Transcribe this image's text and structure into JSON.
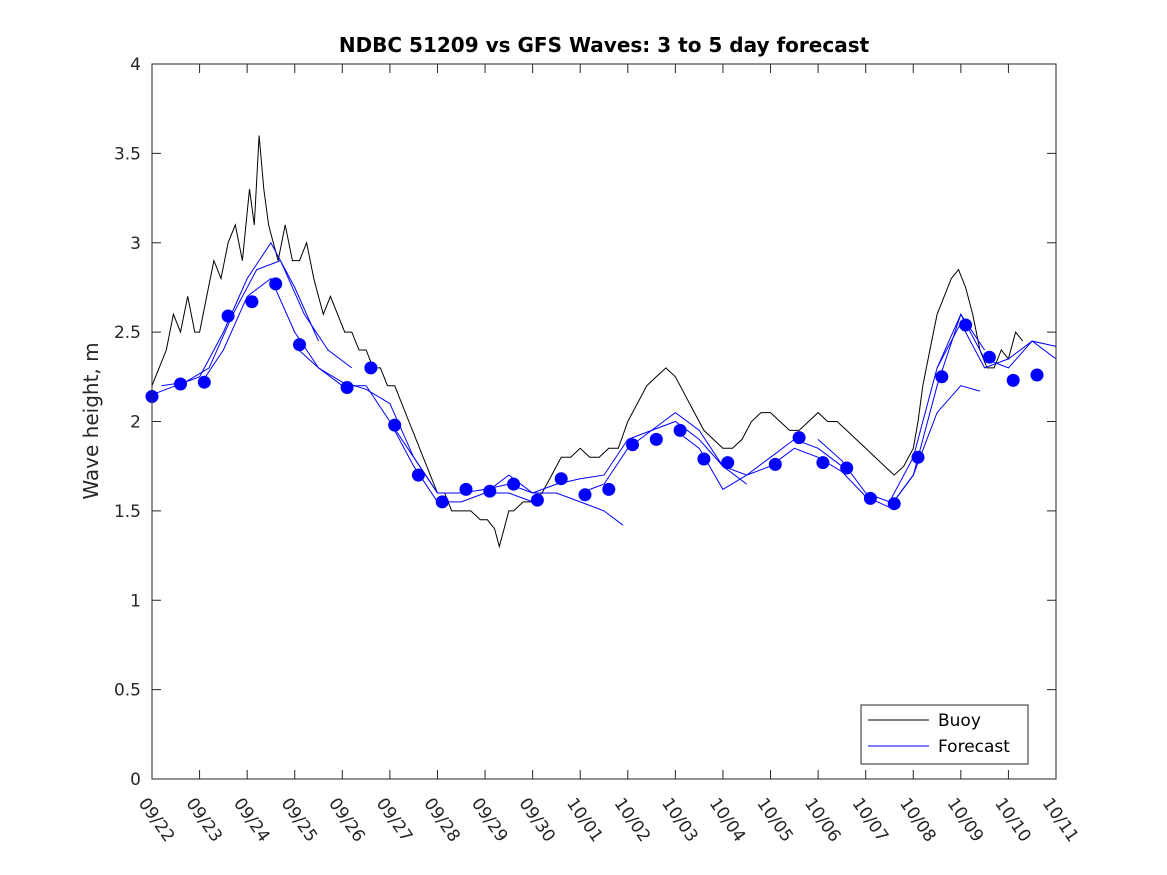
{
  "chart_data": {
    "type": "line",
    "title": "NDBC 51209 vs GFS Waves: 3 to 5 day forecast",
    "xlabel": "",
    "ylabel": "Wave height, m",
    "x_tick_labels": [
      "09/22",
      "09/23",
      "09/24",
      "09/25",
      "09/26",
      "09/27",
      "09/28",
      "09/29",
      "09/30",
      "10/01",
      "10/02",
      "10/03",
      "10/04",
      "10/05",
      "10/06",
      "10/07",
      "10/08",
      "10/09",
      "10/10",
      "10/11"
    ],
    "xlim": [
      0,
      19
    ],
    "ylim": [
      0,
      4
    ],
    "y_ticks": [
      0,
      0.5,
      1,
      1.5,
      2,
      2.5,
      3,
      3.5,
      4
    ],
    "y_tick_labels": [
      "0",
      "0.5",
      "1",
      "1.5",
      "2",
      "2.5",
      "3",
      "3.5",
      "4"
    ],
    "grid": false,
    "legend": {
      "position": "bottom-right",
      "entries": [
        "Buoy",
        "Forecast"
      ]
    },
    "colors": {
      "buoy": "#000000",
      "forecast": "#0000ff",
      "axes": "#262626"
    },
    "series": [
      {
        "name": "Buoy",
        "kind": "line",
        "note": "hourly observations; key points shown (day index, m)",
        "points": [
          [
            0.0,
            2.2
          ],
          [
            0.15,
            2.3
          ],
          [
            0.3,
            2.4
          ],
          [
            0.45,
            2.6
          ],
          [
            0.6,
            2.5
          ],
          [
            0.75,
            2.7
          ],
          [
            0.9,
            2.5
          ],
          [
            1.0,
            2.5
          ],
          [
            1.15,
            2.7
          ],
          [
            1.3,
            2.9
          ],
          [
            1.45,
            2.8
          ],
          [
            1.6,
            3.0
          ],
          [
            1.75,
            3.1
          ],
          [
            1.9,
            2.9
          ],
          [
            2.05,
            3.3
          ],
          [
            2.15,
            3.1
          ],
          [
            2.25,
            3.6
          ],
          [
            2.35,
            3.3
          ],
          [
            2.45,
            3.1
          ],
          [
            2.55,
            3.0
          ],
          [
            2.65,
            2.9
          ],
          [
            2.8,
            3.1
          ],
          [
            2.95,
            2.9
          ],
          [
            3.1,
            2.9
          ],
          [
            3.25,
            3.0
          ],
          [
            3.4,
            2.8
          ],
          [
            3.5,
            2.7
          ],
          [
            3.6,
            2.6
          ],
          [
            3.75,
            2.7
          ],
          [
            3.9,
            2.6
          ],
          [
            4.05,
            2.5
          ],
          [
            4.2,
            2.5
          ],
          [
            4.35,
            2.4
          ],
          [
            4.5,
            2.4
          ],
          [
            4.65,
            2.3
          ],
          [
            4.8,
            2.3
          ],
          [
            4.95,
            2.2
          ],
          [
            5.1,
            2.2
          ],
          [
            5.25,
            2.1
          ],
          [
            5.4,
            2.0
          ],
          [
            5.55,
            1.9
          ],
          [
            5.7,
            1.8
          ],
          [
            5.85,
            1.7
          ],
          [
            6.0,
            1.6
          ],
          [
            6.15,
            1.6
          ],
          [
            6.3,
            1.5
          ],
          [
            6.5,
            1.5
          ],
          [
            6.7,
            1.5
          ],
          [
            6.9,
            1.45
          ],
          [
            7.05,
            1.45
          ],
          [
            7.2,
            1.4
          ],
          [
            7.3,
            1.3
          ],
          [
            7.4,
            1.4
          ],
          [
            7.5,
            1.5
          ],
          [
            7.6,
            1.5
          ],
          [
            7.8,
            1.55
          ],
          [
            8.0,
            1.55
          ],
          [
            8.2,
            1.6
          ],
          [
            8.4,
            1.7
          ],
          [
            8.6,
            1.8
          ],
          [
            8.8,
            1.8
          ],
          [
            9.0,
            1.85
          ],
          [
            9.2,
            1.8
          ],
          [
            9.4,
            1.8
          ],
          [
            9.6,
            1.85
          ],
          [
            9.8,
            1.85
          ],
          [
            10.0,
            2.0
          ],
          [
            10.2,
            2.1
          ],
          [
            10.4,
            2.2
          ],
          [
            10.6,
            2.25
          ],
          [
            10.8,
            2.3
          ],
          [
            11.0,
            2.25
          ],
          [
            11.2,
            2.15
          ],
          [
            11.4,
            2.05
          ],
          [
            11.6,
            1.95
          ],
          [
            11.8,
            1.9
          ],
          [
            12.0,
            1.85
          ],
          [
            12.2,
            1.85
          ],
          [
            12.4,
            1.9
          ],
          [
            12.6,
            2.0
          ],
          [
            12.8,
            2.05
          ],
          [
            13.0,
            2.05
          ],
          [
            13.2,
            2.0
          ],
          [
            13.4,
            1.95
          ],
          [
            13.6,
            1.95
          ],
          [
            13.8,
            2.0
          ],
          [
            14.0,
            2.05
          ],
          [
            14.2,
            2.0
          ],
          [
            14.4,
            2.0
          ],
          [
            14.6,
            1.95
          ],
          [
            14.8,
            1.9
          ],
          [
            15.0,
            1.85
          ],
          [
            15.2,
            1.8
          ],
          [
            15.4,
            1.75
          ],
          [
            15.6,
            1.7
          ],
          [
            15.8,
            1.75
          ],
          [
            16.0,
            1.85
          ],
          [
            16.1,
            2.0
          ],
          [
            16.2,
            2.2
          ],
          [
            16.35,
            2.4
          ],
          [
            16.5,
            2.6
          ],
          [
            16.65,
            2.7
          ],
          [
            16.8,
            2.8
          ],
          [
            16.95,
            2.85
          ],
          [
            17.1,
            2.75
          ],
          [
            17.25,
            2.6
          ],
          [
            17.4,
            2.4
          ],
          [
            17.55,
            2.3
          ],
          [
            17.7,
            2.3
          ],
          [
            17.85,
            2.4
          ],
          [
            18.0,
            2.35
          ],
          [
            18.15,
            2.5
          ],
          [
            18.3,
            2.45
          ]
        ]
      },
      {
        "name": "Forecast",
        "kind": "line",
        "runs": [
          [
            [
              0,
              2.15
            ],
            [
              0.5,
              2.2
            ],
            [
              1,
              2.25
            ],
            [
              1.5,
              2.5
            ],
            [
              2,
              2.8
            ],
            [
              2.5,
              3.0
            ],
            [
              3,
              2.75
            ],
            [
              3.5,
              2.45
            ]
          ],
          [
            [
              0.2,
              2.2
            ],
            [
              0.7,
              2.22
            ],
            [
              1.2,
              2.3
            ],
            [
              1.7,
              2.6
            ],
            [
              2.2,
              2.85
            ],
            [
              2.7,
              2.9
            ],
            [
              3.2,
              2.6
            ],
            [
              3.7,
              2.4
            ],
            [
              4.2,
              2.3
            ]
          ],
          [
            [
              1.0,
              2.2
            ],
            [
              1.5,
              2.4
            ],
            [
              2.0,
              2.7
            ],
            [
              2.5,
              2.8
            ],
            [
              3.0,
              2.5
            ],
            [
              3.5,
              2.3
            ],
            [
              4.0,
              2.22
            ],
            [
              4.5,
              2.18
            ],
            [
              5.0,
              2.1
            ],
            [
              5.5,
              1.8
            ],
            [
              6.0,
              1.6
            ]
          ],
          [
            [
              3.0,
              2.42
            ],
            [
              3.5,
              2.3
            ],
            [
              4.0,
              2.2
            ],
            [
              4.5,
              2.2
            ],
            [
              5.0,
              2.0
            ],
            [
              5.5,
              1.75
            ],
            [
              6.0,
              1.55
            ],
            [
              6.5,
              1.55
            ],
            [
              7.0,
              1.6
            ],
            [
              7.5,
              1.6
            ],
            [
              8.0,
              1.55
            ]
          ],
          [
            [
              5.0,
              2.0
            ],
            [
              5.5,
              1.8
            ],
            [
              6.0,
              1.6
            ],
            [
              6.5,
              1.6
            ],
            [
              7.0,
              1.62
            ],
            [
              7.5,
              1.65
            ],
            [
              8.0,
              1.6
            ],
            [
              8.5,
              1.6
            ],
            [
              9.0,
              1.55
            ],
            [
              9.5,
              1.5
            ],
            [
              9.9,
              1.42
            ]
          ],
          [
            [
              7.0,
              1.6
            ],
            [
              7.5,
              1.7
            ],
            [
              8.0,
              1.6
            ],
            [
              8.5,
              1.65
            ],
            [
              9.0,
              1.68
            ],
            [
              9.5,
              1.7
            ],
            [
              10.0,
              1.9
            ],
            [
              10.5,
              1.95
            ],
            [
              11.0,
              2.0
            ],
            [
              11.5,
              1.9
            ],
            [
              12.0,
              1.75
            ],
            [
              12.5,
              1.65
            ]
          ],
          [
            [
              9.0,
              1.6
            ],
            [
              9.5,
              1.65
            ],
            [
              10.0,
              1.85
            ],
            [
              10.5,
              1.95
            ],
            [
              11.0,
              2.05
            ],
            [
              11.5,
              1.95
            ],
            [
              12.0,
              1.75
            ],
            [
              12.5,
              1.7
            ],
            [
              13.0,
              1.8
            ],
            [
              13.5,
              1.9
            ],
            [
              14.0,
              1.85
            ],
            [
              14.5,
              1.75
            ]
          ],
          [
            [
              11.0,
              1.95
            ],
            [
              11.5,
              1.85
            ],
            [
              12.0,
              1.62
            ],
            [
              12.5,
              1.7
            ],
            [
              13.0,
              1.75
            ],
            [
              13.5,
              1.85
            ],
            [
              14.0,
              1.8
            ],
            [
              14.5,
              1.72
            ],
            [
              15.0,
              1.58
            ],
            [
              15.5,
              1.52
            ],
            [
              16.0,
              1.7
            ],
            [
              16.5,
              2.2
            ],
            [
              17.0,
              2.6
            ],
            [
              17.5,
              2.4
            ]
          ],
          [
            [
              14.0,
              1.9
            ],
            [
              14.5,
              1.78
            ],
            [
              15.0,
              1.6
            ],
            [
              15.5,
              1.55
            ],
            [
              16.0,
              1.8
            ],
            [
              16.5,
              2.3
            ],
            [
              17.0,
              2.55
            ],
            [
              17.5,
              2.3
            ],
            [
              18.0,
              2.35
            ],
            [
              18.5,
              2.45
            ],
            [
              19.0,
              2.42
            ]
          ],
          [
            [
              15.5,
              1.52
            ],
            [
              16.0,
              1.7
            ],
            [
              16.5,
              2.05
            ],
            [
              17.0,
              2.2
            ],
            [
              17.4,
              2.17
            ]
          ],
          [
            [
              16.5,
              2.3
            ],
            [
              17.0,
              2.6
            ],
            [
              17.5,
              2.35
            ],
            [
              18.0,
              2.3
            ],
            [
              18.5,
              2.45
            ],
            [
              19.0,
              2.35
            ]
          ]
        ]
      },
      {
        "name": "Forecast (3-day points)",
        "kind": "scatter",
        "x": [
          0,
          0.6,
          1.1,
          1.6,
          2.1,
          2.6,
          3.1,
          4.1,
          4.6,
          5.1,
          5.6,
          6.1,
          6.6,
          7.1,
          7.6,
          8.1,
          8.6,
          9.1,
          9.6,
          10.1,
          10.6,
          11.1,
          11.6,
          12.1,
          13.1,
          13.6,
          14.1,
          14.6,
          15.1,
          15.6,
          16.1,
          16.6,
          17.1,
          17.6,
          18.1,
          18.6
        ],
        "y": [
          2.14,
          2.21,
          2.22,
          2.59,
          2.67,
          2.77,
          2.43,
          2.19,
          2.3,
          1.98,
          1.7,
          1.55,
          1.62,
          1.61,
          1.65,
          1.56,
          1.68,
          1.59,
          1.62,
          1.87,
          1.9,
          1.95,
          1.79,
          1.77,
          1.76,
          1.91,
          1.77,
          1.74,
          1.57,
          1.54,
          1.8,
          2.25,
          2.54,
          2.36,
          2.23,
          2.26
        ]
      }
    ]
  }
}
